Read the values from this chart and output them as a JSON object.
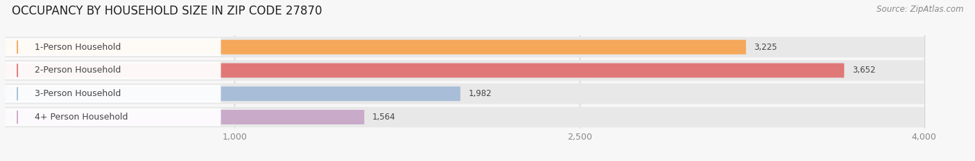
{
  "title": "OCCUPANCY BY HOUSEHOLD SIZE IN ZIP CODE 27870",
  "source": "Source: ZipAtlas.com",
  "categories": [
    "1-Person Household",
    "2-Person Household",
    "3-Person Household",
    "4+ Person Household"
  ],
  "values": [
    3225,
    3652,
    1982,
    1564
  ],
  "bar_colors": [
    "#F5A85A",
    "#E07878",
    "#A8BDD8",
    "#C9AAC9"
  ],
  "row_bg_color": "#E8E8E8",
  "label_bg_color": "#FFFFFF",
  "xlim_max": 4200,
  "data_max": 4000,
  "xticks": [
    1000,
    2500,
    4000
  ],
  "title_fontsize": 12,
  "source_fontsize": 8.5,
  "label_fontsize": 9,
  "value_fontsize": 8.5,
  "bar_height": 0.62,
  "background_color": "#F7F7F7",
  "grid_color": "#CCCCCC",
  "text_color": "#444444",
  "tick_color": "#888888"
}
